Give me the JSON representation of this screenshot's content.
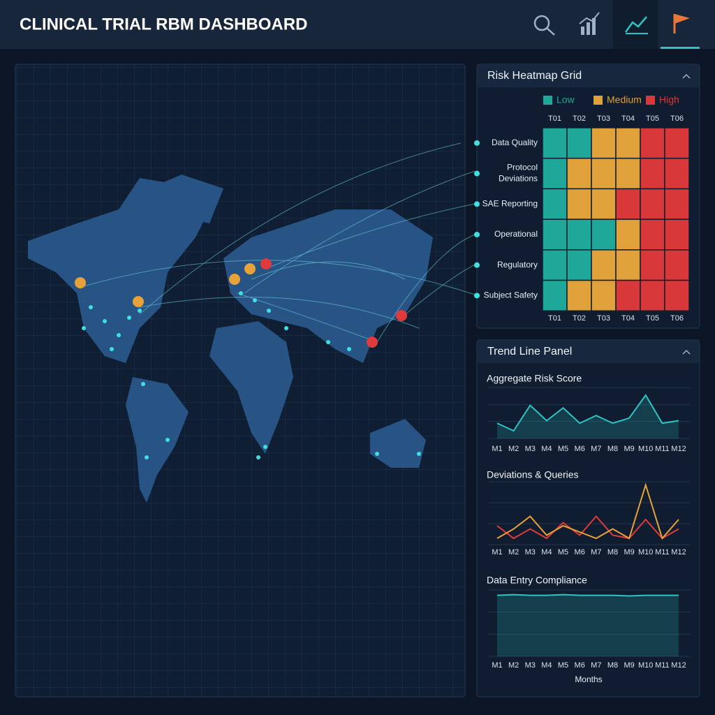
{
  "header": {
    "title": "CLINICAL TRIAL RBM DASHBOARD"
  },
  "heatmap": {
    "title": "Risk Heatmap Grid",
    "legend": [
      {
        "label": "Low",
        "color": "#1fa89a"
      },
      {
        "label": "Medium",
        "color": "#e0a03a"
      },
      {
        "label": "High",
        "color": "#d9383a"
      }
    ],
    "columns": [
      "T01",
      "T02",
      "T03",
      "T04",
      "T05",
      "T06"
    ],
    "rows": [
      {
        "label": "Data Quality",
        "cells": [
          "Low",
          "Low",
          "Medium",
          "Medium",
          "High",
          "High"
        ]
      },
      {
        "label": "Protocol Deviations",
        "cells": [
          "Low",
          "Medium",
          "Medium",
          "Medium",
          "High",
          "High"
        ]
      },
      {
        "label": "SAE Reporting",
        "cells": [
          "Low",
          "Medium",
          "Medium",
          "High",
          "High",
          "High"
        ]
      },
      {
        "label": "Operational",
        "cells": [
          "Low",
          "Low",
          "Low",
          "Medium",
          "High",
          "High"
        ]
      },
      {
        "label": "Regulatory",
        "cells": [
          "Low",
          "Low",
          "Medium",
          "Medium",
          "High",
          "High"
        ]
      },
      {
        "label": "Subject Safety",
        "cells": [
          "Low",
          "Medium",
          "Medium",
          "High",
          "High",
          "High"
        ]
      }
    ]
  },
  "trends": {
    "title": "Trend Line Panel",
    "categories": [
      "M1",
      "M2",
      "M3",
      "M4",
      "M5",
      "M6",
      "M7",
      "M8",
      "M9",
      "M10",
      "M11",
      "M12"
    ],
    "xlabel": "Months",
    "charts": [
      {
        "title": "Aggregate Risk Score",
        "ylim": [
          0,
          100
        ],
        "series": [
          {
            "color": "#2ec4c4",
            "values": [
              30,
              15,
              65,
              35,
              60,
              30,
              45,
              30,
              40,
              85,
              30,
              35
            ]
          }
        ]
      },
      {
        "title": "Deviations & Queries",
        "ylim": [
          0,
          100
        ],
        "series": [
          {
            "color": "#e03a3a",
            "values": [
              30,
              10,
              25,
              10,
              35,
              15,
              45,
              15,
              10,
              40,
              10,
              25
            ]
          },
          {
            "color": "#e8a23a",
            "values": [
              10,
              25,
              45,
              15,
              30,
              20,
              10,
              25,
              10,
              95,
              10,
              40
            ]
          }
        ]
      },
      {
        "title": "Data Entry Compliance",
        "ylim": [
          0,
          100
        ],
        "series": [
          {
            "color": "#2ec4c4",
            "values": [
              92,
              93,
              92,
              92,
              93,
              92,
              92,
              92,
              91,
              92,
              92,
              92
            ]
          }
        ]
      }
    ]
  }
}
